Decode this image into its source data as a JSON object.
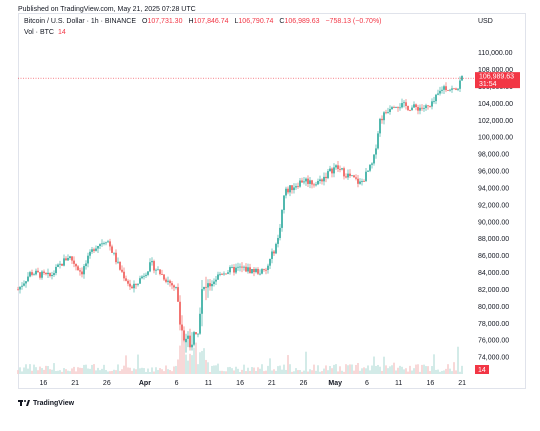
{
  "header": {
    "published": "Published on TradingView.com, May 21, 2025 07:28 UTC",
    "symbol": "Bitcoin / U.S. Dollar · 1h · BINANCE",
    "o_label": "O",
    "o_value": "107,731.30",
    "h_label": "H",
    "h_value": "107,846.74",
    "l_label": "L",
    "l_value": "106,790.74",
    "c_label": "C",
    "c_value": "106,989.63",
    "change": "−758.13 (−0.70%)",
    "vol_label": "Vol · BTC",
    "vol_value": "14"
  },
  "currency": "USD",
  "footer": {
    "brand": "TradingView"
  },
  "colors": {
    "up": "#26a69a",
    "down": "#ef5350",
    "volume_up": "#c8e6e3",
    "volume_down": "#f7cfcf",
    "price_line": "#f23645"
  },
  "chart_data": {
    "type": "candlestick",
    "series": [
      {
        "name": "Bitcoin / U.S. Dollar",
        "timeframe": "1h",
        "exchange": "BINANCE"
      }
    ],
    "x_tick_labels": [
      "16",
      "21",
      "26",
      "Apr",
      "6",
      "11",
      "16",
      "21",
      "26",
      "May",
      "6",
      "11",
      "16",
      "21"
    ],
    "y_tick_values": [
      74000,
      76000,
      78000,
      80000,
      82000,
      84000,
      86000,
      88000,
      90000,
      92000,
      94000,
      96000,
      98000,
      100000,
      102000,
      104000,
      106000,
      108000,
      110000
    ],
    "y_tick_labels": [
      "74,000.00",
      "76,000.00",
      "78,000.00",
      "80,000.00",
      "82,000.00",
      "84,000.00",
      "86,000.00",
      "88,000.00",
      "90,000.00",
      "92,000.00",
      "94,000.00",
      "96,000.00",
      "98,000.00",
      "100,000.00",
      "102,000.00",
      "104,000.00",
      "106,000.00",
      "108,000.00",
      "110,000.00"
    ],
    "ylim": [
      72000,
      111500
    ],
    "price_path": [
      {
        "x": "Mar 12",
        "y": 82000
      },
      {
        "x": "Mar 14",
        "y": 84000
      },
      {
        "x": "Mar 17",
        "y": 83500
      },
      {
        "x": "Mar 20",
        "y": 86000
      },
      {
        "x": "Mar 22",
        "y": 84000
      },
      {
        "x": "Mar 24",
        "y": 87000
      },
      {
        "x": "Mar 26",
        "y": 88000
      },
      {
        "x": "Mar 28",
        "y": 84500
      },
      {
        "x": "Mar 30",
        "y": 82000
      },
      {
        "x": "Apr 2",
        "y": 85000
      },
      {
        "x": "Apr 4",
        "y": 83500
      },
      {
        "x": "Apr 6",
        "y": 82000
      },
      {
        "x": "Apr 7",
        "y": 76500
      },
      {
        "x": "Apr 9",
        "y": 76000
      },
      {
        "x": "Apr 10",
        "y": 81500
      },
      {
        "x": "Apr 13",
        "y": 84000
      },
      {
        "x": "Apr 16",
        "y": 84500
      },
      {
        "x": "Apr 20",
        "y": 84000
      },
      {
        "x": "Apr 22",
        "y": 88000
      },
      {
        "x": "Apr 23",
        "y": 93500
      },
      {
        "x": "Apr 26",
        "y": 95000
      },
      {
        "x": "Apr 28",
        "y": 94500
      },
      {
        "x": "May 1",
        "y": 96500
      },
      {
        "x": "May 3",
        "y": 95500
      },
      {
        "x": "May 5",
        "y": 94500
      },
      {
        "x": "May 7",
        "y": 97000
      },
      {
        "x": "May 8",
        "y": 102000
      },
      {
        "x": "May 10",
        "y": 104000
      },
      {
        "x": "May 13",
        "y": 103500
      },
      {
        "x": "May 16",
        "y": 103500
      },
      {
        "x": "May 18",
        "y": 106000
      },
      {
        "x": "May 20",
        "y": 105500
      },
      {
        "x": "May 21",
        "y": 106989.63
      }
    ],
    "last_price": {
      "value": 106989.63,
      "label": "106,989.63",
      "countdown": "31:54"
    },
    "volume_label": "14",
    "grid": false
  }
}
